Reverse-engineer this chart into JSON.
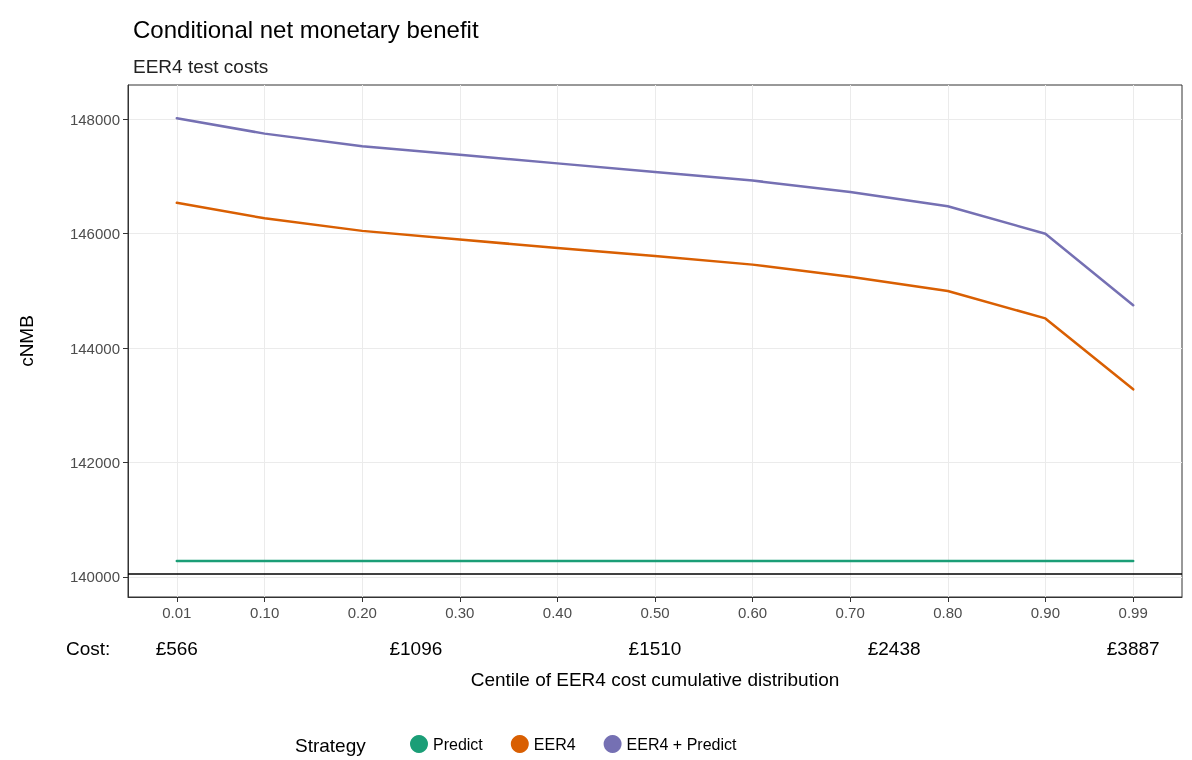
{
  "chart_data": {
    "type": "line",
    "title": "Conditional net monetary benefit",
    "subtitle": "EER4 test costs",
    "xlabel": "Centile of EER4 cost cumulative distribution",
    "ylabel": "cNMB",
    "legend_title": "Strategy",
    "x": [
      0.01,
      0.1,
      0.2,
      0.3,
      0.4,
      0.5,
      0.6,
      0.7,
      0.8,
      0.9,
      0.99
    ],
    "series": [
      {
        "name": "Predict",
        "color": "#1b9e77",
        "values": [
          140280,
          140280,
          140280,
          140280,
          140280,
          140280,
          140280,
          140280,
          140280,
          140280,
          140280
        ]
      },
      {
        "name": "EER4",
        "color": "#d95f02",
        "values": [
          146540,
          146270,
          146050,
          145900,
          145750,
          145610,
          145460,
          145250,
          145000,
          144520,
          143280
        ]
      },
      {
        "name": "EER4 + Predict",
        "color": "#7570b3",
        "values": [
          148020,
          147750,
          147530,
          147380,
          147230,
          147080,
          146930,
          146730,
          146480,
          146000,
          144750
        ]
      }
    ],
    "xlim": [
      -0.04,
      1.04
    ],
    "xticks": [
      0.01,
      {
        "value": 0.1,
        "label": "0.10"
      },
      {
        "value": 0.2,
        "label": "0.20"
      },
      {
        "value": 0.3,
        "label": "0.30"
      },
      {
        "value": 0.4,
        "label": "0.40"
      },
      {
        "value": 0.5,
        "label": "0.50"
      },
      {
        "value": 0.6,
        "label": "0.60"
      },
      {
        "value": 0.7,
        "label": "0.70"
      },
      {
        "value": 0.8,
        "label": "0.80"
      },
      {
        "value": 0.9,
        "label": "0.90"
      },
      0.99
    ],
    "ylim": [
      139650,
      148600
    ],
    "yticks": [
      140000,
      142000,
      144000,
      146000,
      148000
    ],
    "ref_lines": [
      {
        "axis": "y",
        "value": 140060,
        "color": "#000000"
      }
    ],
    "annotations": [
      "Cost:",
      "£566",
      "£1096",
      "£1510",
      "£2438",
      "£3887"
    ],
    "grid": true,
    "legend": "bottom",
    "marker": "none",
    "line_style": "solid"
  }
}
